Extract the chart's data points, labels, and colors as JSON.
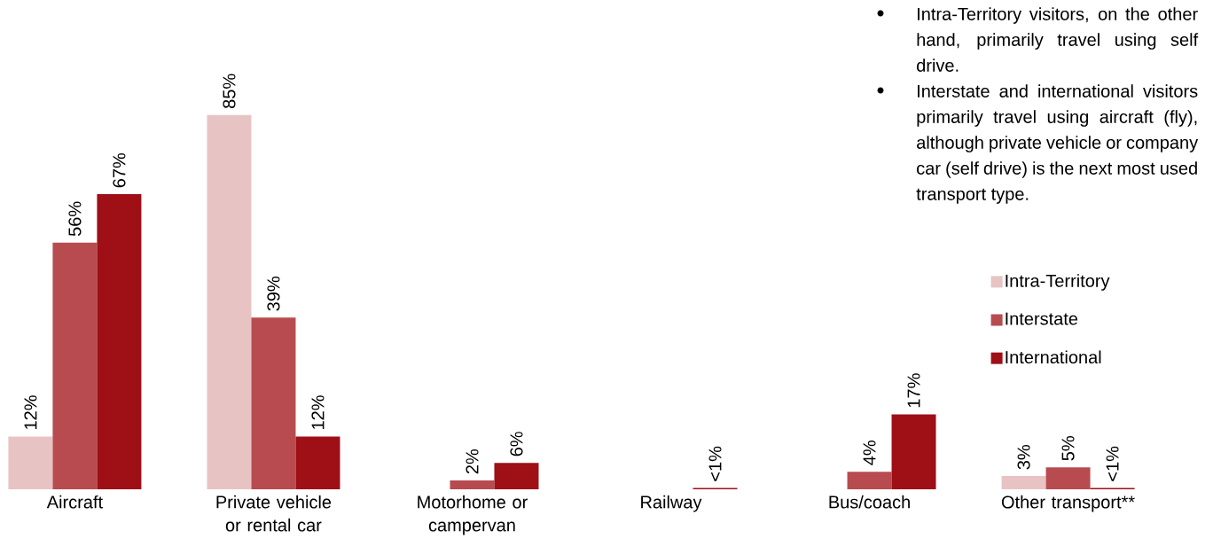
{
  "chart_data": {
    "type": "bar",
    "categories": [
      "Aircraft",
      "Private vehicle or rental car",
      "Motorhome or campervan",
      "Railway",
      "Bus/coach",
      "Other transport**"
    ],
    "series": [
      {
        "name": "Intra-Territory",
        "color": "#e8c3c3",
        "values": [
          12,
          85,
          null,
          null,
          null,
          3
        ],
        "value_labels": [
          "12%",
          "85%",
          null,
          null,
          null,
          "3%"
        ]
      },
      {
        "name": "Interstate",
        "color": "#b84b4f",
        "values": [
          56,
          39,
          2,
          null,
          4,
          5
        ],
        "value_labels": [
          "56%",
          "39%",
          "2%",
          null,
          "4%",
          "5%"
        ]
      },
      {
        "name": "International",
        "color": "#9e0f16",
        "values": [
          67,
          12,
          6,
          0.3,
          17,
          0.3
        ],
        "value_labels": [
          "67%",
          "12%",
          "6%",
          "<1%",
          "17%",
          "<1%"
        ]
      }
    ],
    "legend": "right",
    "annotations": [
      "Intra-Territory visitors, on the other hand, primarily travel using self drive.",
      "Interstate and international visitors primarily travel using aircraft (fly), although private vehicle or company car (self drive) is the next most used transport type."
    ]
  }
}
